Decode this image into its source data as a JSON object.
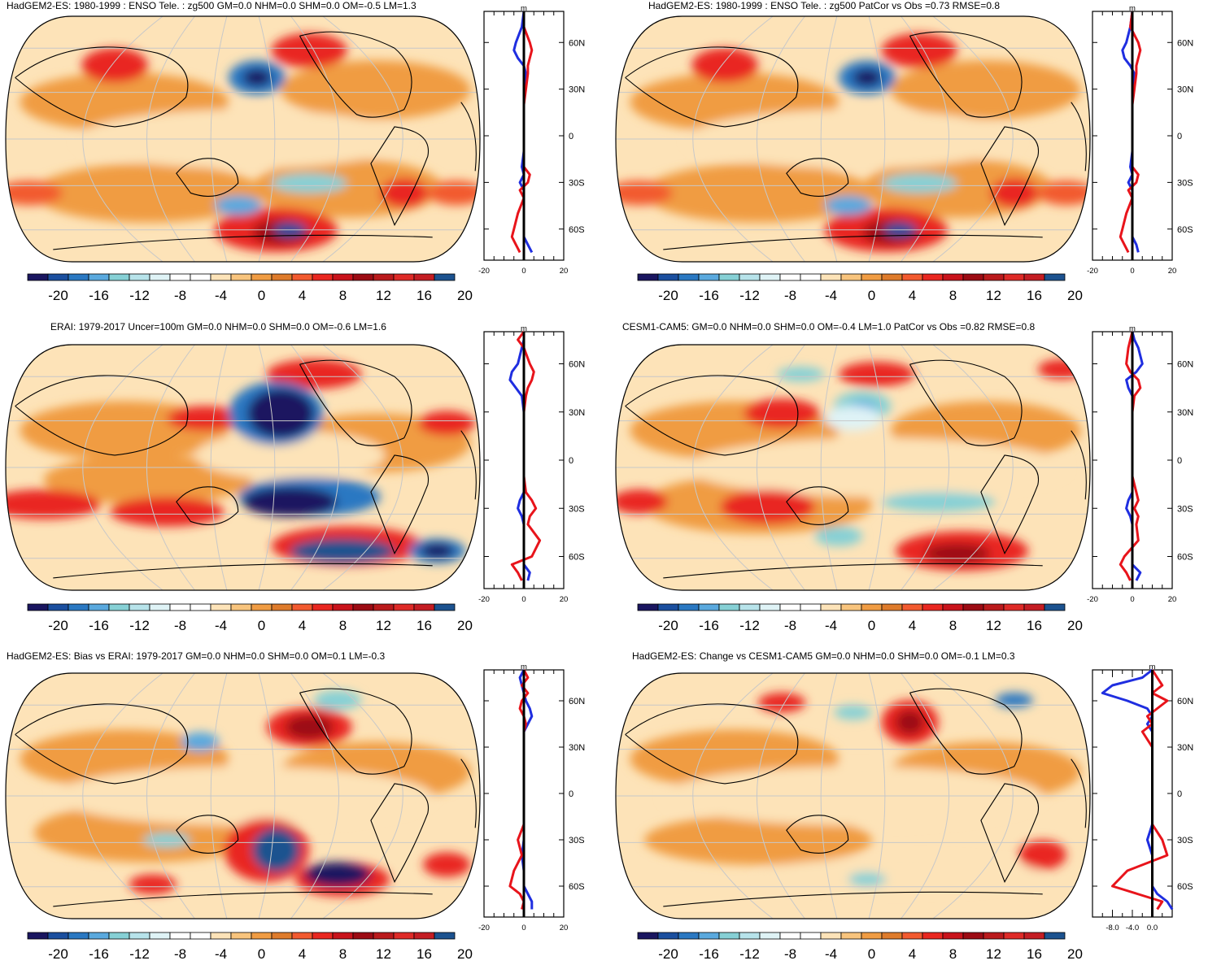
{
  "chart_data": [
    {
      "type": "heatmap",
      "title": "HadGEM2-ES: 1980-1999 : ENSO Tele. : zg500 GM=0.0 NHM=0.0 SHM=0.0 OM=-0.5 LM=1.3",
      "map_kind": "global zg500 anomaly (Robinson projection)",
      "colorbar": {
        "ticks": [
          "-20",
          "-16",
          "-12",
          "-8",
          "-4",
          "0",
          "4",
          "8",
          "12",
          "16",
          "20"
        ]
      },
      "zonal_profile": {
        "xlim": [
          -20,
          20
        ],
        "xticks": [
          "-20",
          "0",
          "20"
        ],
        "unit": "m",
        "lat_ticks": [
          "60N",
          "30N",
          "0",
          "30S",
          "60S"
        ],
        "series": [
          {
            "name": "blue",
            "color": "#1f2ee0",
            "lat": [
              80,
              70,
              60,
              55,
              50,
              45,
              40,
              30,
              20,
              10,
              0,
              -10,
              -20,
              -25,
              -30,
              -35,
              -40,
              -50,
              -60,
              -65,
              -70,
              -75
            ],
            "values": [
              0,
              -1,
              -4,
              -5,
              -3,
              0,
              1,
              0,
              0,
              0,
              0,
              0,
              -1,
              0,
              -2,
              0,
              0,
              0,
              0,
              0,
              2,
              4
            ]
          },
          {
            "name": "red",
            "color": "#e8141b",
            "lat": [
              80,
              70,
              60,
              55,
              50,
              45,
              40,
              30,
              20,
              10,
              0,
              -10,
              -20,
              -25,
              -30,
              -35,
              -40,
              -50,
              -60,
              -65,
              -70,
              -75
            ],
            "values": [
              0,
              0,
              3,
              4,
              3,
              2,
              2,
              1,
              0,
              0,
              0,
              0,
              0,
              3,
              2,
              -2,
              0,
              -3,
              -5,
              -6,
              -4,
              -2
            ]
          }
        ]
      }
    },
    {
      "type": "heatmap",
      "title": "HadGEM2-ES: 1980-1999 : ENSO Tele. : zg500 PatCor vs Obs =0.73 RMSE=0.8",
      "map_kind": "global zg500 anomaly (Robinson projection)",
      "colorbar": {
        "ticks": [
          "-20",
          "-16",
          "-12",
          "-8",
          "-4",
          "0",
          "4",
          "8",
          "12",
          "16",
          "20"
        ]
      },
      "zonal_profile": {
        "xlim": [
          -20,
          20
        ],
        "xticks": [
          "-20",
          "0",
          "20"
        ],
        "unit": "m",
        "lat_ticks": [
          "60N",
          "30N",
          "0",
          "30S",
          "60S"
        ],
        "series": [
          {
            "name": "blue",
            "color": "#1f2ee0",
            "lat": [
              80,
              70,
              60,
              55,
              50,
              45,
              40,
              30,
              20,
              10,
              0,
              -10,
              -20,
              -25,
              -30,
              -35,
              -40,
              -50,
              -60,
              -65,
              -70,
              -75
            ],
            "values": [
              0,
              -1,
              -3,
              -5,
              -4,
              -1,
              1,
              0,
              0,
              0,
              0,
              0,
              -1,
              0,
              -2,
              0,
              0,
              0,
              0,
              0,
              2,
              3
            ]
          },
          {
            "name": "red",
            "color": "#e8141b",
            "lat": [
              80,
              70,
              60,
              55,
              50,
              45,
              40,
              30,
              20,
              10,
              0,
              -10,
              -20,
              -25,
              -30,
              -35,
              -40,
              -50,
              -60,
              -65,
              -70,
              -75
            ],
            "values": [
              0,
              -1,
              3,
              4,
              3,
              2,
              2,
              1,
              0,
              0,
              0,
              0,
              0,
              3,
              2,
              -2,
              0,
              -3,
              -5,
              -6,
              -4,
              -2
            ]
          }
        ]
      }
    },
    {
      "type": "heatmap",
      "title": "ERAI: 1979-2017 Uncer=100m GM=0.0 NHM=0.0 SHM=0.0 OM=-0.6 LM=1.6",
      "map_kind": "global zg500 anomaly (Robinson projection)",
      "colorbar": {
        "ticks": [
          "-20",
          "-16",
          "-12",
          "-8",
          "-4",
          "0",
          "4",
          "8",
          "12",
          "16",
          "20"
        ]
      },
      "zonal_profile": {
        "xlim": [
          -20,
          20
        ],
        "xticks": [
          "-20",
          "0",
          "20"
        ],
        "unit": "m",
        "lat_ticks": [
          "60N",
          "30N",
          "0",
          "30S",
          "60S"
        ],
        "series": [
          {
            "name": "blue",
            "color": "#1f2ee0",
            "lat": [
              80,
              75,
              70,
              60,
              55,
              50,
              45,
              40,
              30,
              20,
              10,
              0,
              -10,
              -20,
              -25,
              -30,
              -35,
              -40,
              -50,
              -60,
              -65,
              -70,
              -75
            ],
            "values": [
              0,
              0,
              -1,
              -3,
              -6,
              -7,
              -4,
              -1,
              0,
              0,
              0,
              0,
              0,
              0,
              -2,
              -3,
              -1,
              0,
              0,
              0,
              0,
              3,
              2
            ]
          },
          {
            "name": "red",
            "color": "#e8141b",
            "lat": [
              80,
              75,
              70,
              60,
              55,
              50,
              45,
              40,
              30,
              20,
              10,
              0,
              -10,
              -20,
              -25,
              -30,
              -35,
              -40,
              -50,
              -60,
              -65,
              -70,
              -75
            ],
            "values": [
              0,
              -3,
              0,
              3,
              5,
              4,
              2,
              1,
              0,
              0,
              0,
              0,
              0,
              1,
              4,
              6,
              3,
              2,
              8,
              4,
              -6,
              -3,
              -1
            ]
          }
        ]
      }
    },
    {
      "type": "heatmap",
      "title": "CESM1-CAM5: GM=0.0 NHM=0.0 SHM=0.0 OM=-0.4 LM=1.0 PatCor vs Obs =0.82 RMSE=0.8",
      "map_kind": "global zg500 anomaly (Robinson projection)",
      "colorbar": {
        "ticks": [
          "-20",
          "-16",
          "-12",
          "-8",
          "-4",
          "0",
          "4",
          "8",
          "12",
          "16",
          "20"
        ]
      },
      "zonal_profile": {
        "xlim": [
          -20,
          20
        ],
        "xticks": [
          "-20",
          "0",
          "20"
        ],
        "unit": "m",
        "lat_ticks": [
          "60N",
          "30N",
          "0",
          "30S",
          "60S"
        ],
        "series": [
          {
            "name": "blue",
            "color": "#1f2ee0",
            "lat": [
              80,
              75,
              70,
              60,
              55,
              50,
              45,
              40,
              30,
              20,
              10,
              0,
              -10,
              -20,
              -25,
              -30,
              -35,
              -40,
              -50,
              -60,
              -65,
              -70,
              -75
            ],
            "values": [
              0,
              1,
              3,
              5,
              2,
              -3,
              -2,
              0,
              0,
              0,
              0,
              0,
              0,
              0,
              -2,
              -3,
              -1,
              0,
              0,
              0,
              0,
              4,
              2
            ]
          },
          {
            "name": "red",
            "color": "#e8141b",
            "lat": [
              80,
              75,
              70,
              60,
              55,
              50,
              45,
              40,
              30,
              20,
              10,
              0,
              -10,
              -20,
              -25,
              -30,
              -35,
              -40,
              -50,
              -60,
              -65,
              -70,
              -75
            ],
            "values": [
              0,
              -1,
              -2,
              -3,
              -1,
              3,
              4,
              1,
              0,
              0,
              0,
              0,
              0,
              2,
              3,
              1,
              3,
              2,
              3,
              -4,
              -6,
              -3,
              -1
            ]
          }
        ]
      }
    },
    {
      "type": "heatmap",
      "title": "HadGEM2-ES: Bias vs ERAI: 1979-2017 GM=0.0 NHM=0.0 SHM=0.0 OM=0.1 LM=-0.3",
      "map_kind": "global zg500 anomaly (Robinson projection)",
      "colorbar": {
        "ticks": [
          "-20",
          "-16",
          "-12",
          "-8",
          "-4",
          "0",
          "4",
          "8",
          "12",
          "16",
          "20"
        ]
      },
      "zonal_profile": {
        "xlim": [
          -20,
          20
        ],
        "xticks": [
          "-20",
          "0",
          "20"
        ],
        "unit": "m",
        "lat_ticks": [
          "60N",
          "30N",
          "0",
          "30S",
          "60S"
        ],
        "series": [
          {
            "name": "blue",
            "color": "#1f2ee0",
            "lat": [
              80,
              75,
              70,
              65,
              60,
              55,
              50,
              45,
              40,
              30,
              20,
              10,
              0,
              -10,
              -20,
              -30,
              -40,
              -50,
              -60,
              -65,
              -70,
              -75
            ],
            "values": [
              0,
              -2,
              -1,
              0,
              1,
              3,
              4,
              2,
              0,
              0,
              0,
              0,
              0,
              0,
              0,
              0,
              -1,
              0,
              0,
              2,
              4,
              4
            ]
          },
          {
            "name": "red",
            "color": "#e8141b",
            "lat": [
              80,
              75,
              70,
              65,
              60,
              55,
              50,
              45,
              40,
              30,
              20,
              10,
              0,
              -10,
              -20,
              -30,
              -40,
              -50,
              -60,
              -65,
              -70,
              -75
            ],
            "values": [
              0,
              2,
              -1,
              2,
              -1,
              -2,
              0,
              1,
              0,
              0,
              0,
              0,
              0,
              0,
              0,
              -3,
              -1,
              -5,
              -7,
              -2,
              0,
              -1
            ]
          }
        ]
      }
    },
    {
      "type": "heatmap",
      "title": "HadGEM2-ES: Change vs CESM1-CAM5 GM=0.0 NHM=0.0 SHM=0.0 OM=-0.1 LM=0.3",
      "map_kind": "global zg500 anomaly (Robinson projection)",
      "colorbar": {
        "ticks": [
          "-20",
          "-16",
          "-12",
          "-8",
          "-4",
          "0",
          "4",
          "8",
          "12",
          "16",
          "20"
        ]
      },
      "zonal_profile": {
        "xlim": [
          -12,
          4
        ],
        "xticks": [
          "-8.0",
          "-4.0",
          "0.0"
        ],
        "unit": "m",
        "lat_ticks": [
          "60N",
          "30N",
          "0",
          "30S",
          "60S"
        ],
        "series": [
          {
            "name": "blue",
            "color": "#1f2ee0",
            "lat": [
              80,
              75,
              70,
              65,
              60,
              55,
              50,
              45,
              40,
              30,
              20,
              10,
              0,
              -10,
              -20,
              -30,
              -40,
              -50,
              -60,
              -65,
              -70,
              -75
            ],
            "values": [
              0,
              -2,
              -8,
              -10,
              -5,
              -1,
              0,
              -1,
              0,
              0,
              0,
              0,
              0,
              0,
              0,
              -1,
              0,
              0,
              0,
              1,
              3,
              4
            ]
          },
          {
            "name": "red",
            "color": "#e8141b",
            "lat": [
              80,
              75,
              70,
              65,
              60,
              55,
              50,
              45,
              40,
              30,
              20,
              10,
              0,
              -10,
              -20,
              -30,
              -40,
              -50,
              -60,
              -65,
              -70,
              -75
            ],
            "values": [
              0,
              1,
              2,
              0,
              3,
              1,
              -1,
              0,
              -2,
              0,
              0,
              0,
              0,
              0,
              0,
              2,
              3,
              -5,
              -8,
              -3,
              2,
              1
            ]
          }
        ]
      }
    }
  ]
}
